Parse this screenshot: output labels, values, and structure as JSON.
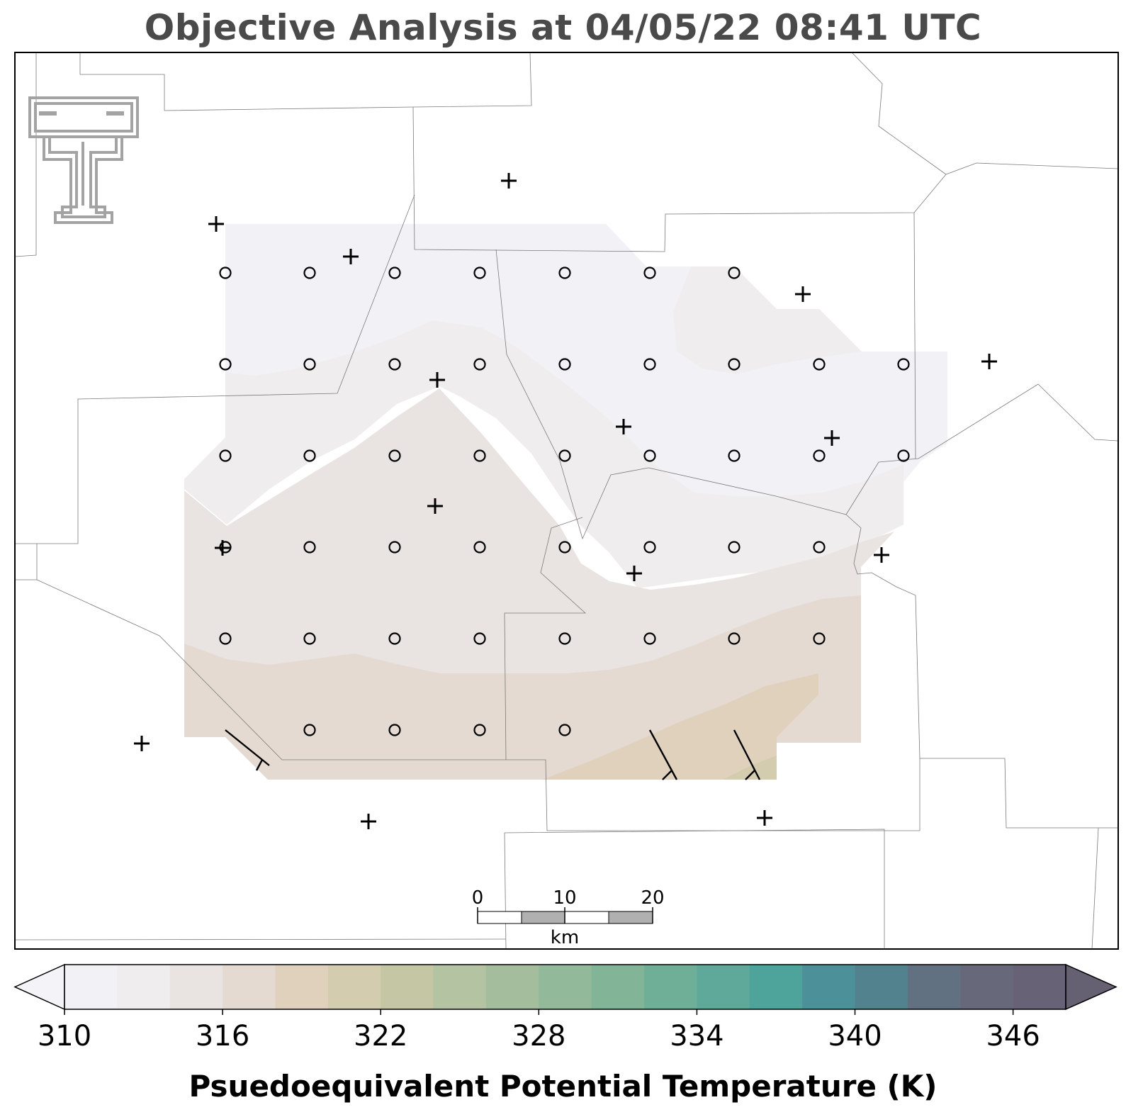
{
  "title": "Objective Analysis at 04/05/22 08:41 UTC",
  "logo": {
    "name": "texas-tech-double-t-logo",
    "color": "#a3a3a3"
  },
  "scale_bar": {
    "labels": [
      "0",
      "10",
      "20"
    ],
    "unit": "km"
  },
  "colorbar": {
    "label": "Psuedoequivalent Potential Temperature (K)",
    "tick_labels": [
      "310",
      "316",
      "322",
      "328",
      "334",
      "340",
      "346"
    ],
    "min": 310,
    "max": 348,
    "step": 2,
    "extend": "both",
    "colors": [
      "#f2f2f6",
      "#efedee",
      "#e9e4e1",
      "#e4dad1",
      "#e0d1bd",
      "#d4ccae",
      "#c4c6a4",
      "#b4c3a2",
      "#a3bd9d",
      "#92b999",
      "#82b598",
      "#6faf97",
      "#5ea99a",
      "#4ea49a",
      "#4c9099",
      "#53828f",
      "#617182",
      "#67697b",
      "#686277"
    ],
    "under_color": "#f4f4f8",
    "over_color": "#666073"
  },
  "analysis": {
    "field_colors": {
      "lowest": "#f2f2f6",
      "low": "#efedee",
      "mid": "#e9e4e1",
      "warm": "#e4dad1",
      "warmer": "#e0d1bd",
      "warmest": "#d4ccae"
    }
  },
  "stations": {
    "count": 15,
    "marker": "plus"
  },
  "grid_points": {
    "count": 49,
    "marker": "circle"
  },
  "wind_barbs": {
    "count": 3
  }
}
